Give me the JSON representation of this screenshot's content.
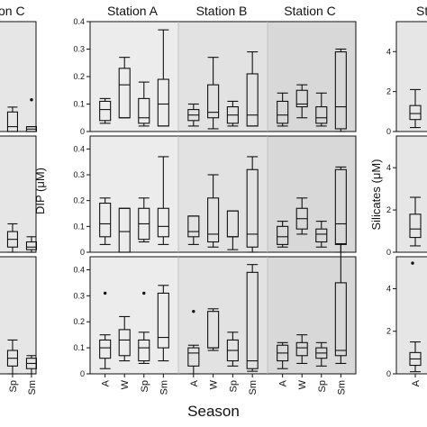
{
  "figure": {
    "xlabel": "Season",
    "ylabel_middle": "DIP (μM)",
    "ylabel_right": "Silicates (μM)"
  },
  "chart_data": [
    {
      "type": "box",
      "panel": "left column (clipped), rows 1–3",
      "title": "on C",
      "x_tick_labels": [
        "Sp",
        "Sm"
      ],
      "rows": [
        {
          "boxes": [
            {
              "season": "Sp",
              "min": 0.0,
              "q1": 0.0,
              "median": 0.02,
              "q3": 0.08,
              "max": 0.1
            },
            {
              "season": "Sm",
              "min": 0.0,
              "q1": 0.0,
              "median": 0.01,
              "q3": 0.02,
              "max": 0.02
            }
          ],
          "outliers": [
            {
              "season": "Sm",
              "value": 0.13
            }
          ]
        },
        {
          "boxes": [
            {
              "season": "Sp",
              "min": 0.0,
              "q1": 0.02,
              "median": 0.05,
              "q3": 0.08,
              "max": 0.11
            },
            {
              "season": "Sm",
              "min": 0.0,
              "q1": 0.01,
              "median": 0.02,
              "q3": 0.04,
              "max": 0.06
            }
          ],
          "outliers": []
        },
        {
          "boxes": [
            {
              "season": "Sp",
              "min": 0.0,
              "q1": 0.03,
              "median": 0.06,
              "q3": 0.09,
              "max": 0.13
            },
            {
              "season": "Sm",
              "min": 0.0,
              "q1": 0.02,
              "median": 0.04,
              "q3": 0.06,
              "max": 0.07
            }
          ],
          "outliers": []
        }
      ]
    },
    {
      "type": "box",
      "panel": "middle column",
      "stations": [
        "Station A",
        "Station B",
        "Station C"
      ],
      "seasons": [
        "A",
        "W",
        "Sp",
        "Sm"
      ],
      "ylabel": "DIP (μM)",
      "row_ylims": [
        [
          0,
          0.4
        ],
        [
          0,
          0.45
        ],
        [
          0,
          0.45
        ]
      ],
      "row_yticks": [
        [
          0,
          0.1,
          0.2,
          0.3,
          0.4
        ],
        [
          0,
          0.1,
          0.2,
          0.3,
          0.4
        ],
        [
          0,
          0.1,
          0.2,
          0.3,
          0.4
        ]
      ],
      "rows": [
        {
          "stations": [
            {
              "name": "Station A",
              "boxes": [
                {
                  "season": "A",
                  "min": 0.03,
                  "q1": 0.04,
                  "median": 0.08,
                  "q3": 0.11,
                  "max": 0.12
                },
                {
                  "season": "W",
                  "min": 0.05,
                  "q1": 0.05,
                  "median": 0.17,
                  "q3": 0.23,
                  "max": 0.27
                },
                {
                  "season": "Sp",
                  "min": 0.02,
                  "q1": 0.03,
                  "median": 0.05,
                  "q3": 0.12,
                  "max": 0.18
                },
                {
                  "season": "Sm",
                  "min": 0.02,
                  "q1": 0.02,
                  "median": 0.1,
                  "q3": 0.19,
                  "max": 0.37
                }
              ]
            },
            {
              "name": "Station B",
              "boxes": [
                {
                  "season": "A",
                  "min": 0.02,
                  "q1": 0.04,
                  "median": 0.06,
                  "q3": 0.08,
                  "max": 0.1
                },
                {
                  "season": "W",
                  "min": 0.01,
                  "q1": 0.05,
                  "median": 0.07,
                  "q3": 0.17,
                  "max": 0.27
                },
                {
                  "season": "Sp",
                  "min": 0.02,
                  "q1": 0.03,
                  "median": 0.06,
                  "q3": 0.09,
                  "max": 0.11
                },
                {
                  "season": "Sm",
                  "min": 0.02,
                  "q1": 0.02,
                  "median": 0.06,
                  "q3": 0.21,
                  "max": 0.29
                }
              ]
            },
            {
              "name": "Station C",
              "boxes": [
                {
                  "season": "A",
                  "min": 0.02,
                  "q1": 0.03,
                  "median": 0.06,
                  "q3": 0.11,
                  "max": 0.14
                },
                {
                  "season": "W",
                  "min": 0.05,
                  "q1": 0.09,
                  "median": 0.1,
                  "q3": 0.15,
                  "max": 0.17
                },
                {
                  "season": "Sp",
                  "min": 0.02,
                  "q1": 0.03,
                  "median": 0.05,
                  "q3": 0.09,
                  "max": 0.14
                },
                {
                  "season": "Sm",
                  "min": 0.0,
                  "q1": 0.01,
                  "median": 0.09,
                  "q3": 0.29,
                  "max": 0.3
                }
              ]
            }
          ]
        },
        {
          "stations": [
            {
              "name": "Station A",
              "boxes": [
                {
                  "season": "A",
                  "min": 0.03,
                  "q1": 0.06,
                  "median": 0.11,
                  "q3": 0.19,
                  "max": 0.21
                },
                {
                  "season": "W",
                  "min": 0.0,
                  "q1": 0.0,
                  "median": 0.08,
                  "q3": 0.17,
                  "max": 0.17
                },
                {
                  "season": "Sp",
                  "min": 0.04,
                  "q1": 0.05,
                  "median": 0.11,
                  "q3": 0.17,
                  "max": 0.21
                },
                {
                  "season": "Sm",
                  "min": 0.03,
                  "q1": 0.06,
                  "median": 0.1,
                  "q3": 0.17,
                  "max": 0.37
                }
              ]
            },
            {
              "name": "Station B",
              "boxes": [
                {
                  "season": "A",
                  "min": 0.03,
                  "q1": 0.06,
                  "median": 0.08,
                  "q3": 0.14,
                  "max": 0.14
                },
                {
                  "season": "W",
                  "min": 0.02,
                  "q1": 0.04,
                  "median": 0.07,
                  "q3": 0.21,
                  "max": 0.3
                },
                {
                  "season": "Sp",
                  "min": 0.01,
                  "q1": 0.06,
                  "median": 0.06,
                  "q3": 0.16,
                  "max": 0.16
                },
                {
                  "season": "Sm",
                  "min": 0.0,
                  "q1": 0.02,
                  "median": 0.07,
                  "q3": 0.32,
                  "max": 0.37
                }
              ]
            },
            {
              "name": "Station C",
              "boxes": [
                {
                  "season": "A",
                  "min": 0.02,
                  "q1": 0.03,
                  "median": 0.06,
                  "q3": 0.1,
                  "max": 0.12
                },
                {
                  "season": "W",
                  "min": 0.07,
                  "q1": 0.09,
                  "median": 0.13,
                  "q3": 0.17,
                  "max": 0.21
                },
                {
                  "season": "Sp",
                  "min": 0.02,
                  "q1": 0.04,
                  "median": 0.07,
                  "q3": 0.09,
                  "max": 0.12
                },
                {
                  "season": "Sm",
                  "min": 0.0,
                  "q1": 0.03,
                  "median": 0.11,
                  "q3": 0.32,
                  "max": 0.33
                }
              ]
            }
          ]
        },
        {
          "stations": [
            {
              "name": "Station A",
              "boxes": [
                {
                  "season": "A",
                  "min": 0.02,
                  "q1": 0.06,
                  "median": 0.1,
                  "q3": 0.13,
                  "max": 0.15
                },
                {
                  "season": "W",
                  "min": 0.05,
                  "q1": 0.07,
                  "median": 0.13,
                  "q3": 0.17,
                  "max": 0.22
                },
                {
                  "season": "Sp",
                  "min": 0.04,
                  "q1": 0.05,
                  "median": 0.1,
                  "q3": 0.13,
                  "max": 0.16
                },
                {
                  "season": "Sm",
                  "min": 0.05,
                  "q1": 0.1,
                  "median": 0.14,
                  "q3": 0.31,
                  "max": 0.34
                }
              ]
            },
            {
              "name": "Station B",
              "boxes": [
                {
                  "season": "A",
                  "min": 0.0,
                  "q1": 0.03,
                  "median": 0.08,
                  "q3": 0.1,
                  "max": 0.11
                },
                {
                  "season": "W",
                  "min": 0.09,
                  "q1": 0.1,
                  "median": 0.1,
                  "q3": 0.24,
                  "max": 0.25
                },
                {
                  "season": "Sp",
                  "min": 0.03,
                  "q1": 0.05,
                  "median": 0.09,
                  "q3": 0.13,
                  "max": 0.16
                },
                {
                  "season": "Sm",
                  "min": 0.01,
                  "q1": 0.02,
                  "median": 0.05,
                  "q3": 0.39,
                  "max": 0.42
                }
              ]
            },
            {
              "name": "Station C",
              "boxes": [
                {
                  "season": "A",
                  "min": 0.02,
                  "q1": 0.05,
                  "median": 0.08,
                  "q3": 0.11,
                  "max": 0.12
                },
                {
                  "season": "W",
                  "min": 0.04,
                  "q1": 0.07,
                  "median": 0.1,
                  "q3": 0.12,
                  "max": 0.15
                },
                {
                  "season": "Sp",
                  "min": 0.03,
                  "q1": 0.06,
                  "median": 0.08,
                  "q3": 0.1,
                  "max": 0.12
                },
                {
                  "season": "Sm",
                  "min": 0.04,
                  "q1": 0.07,
                  "median": 0.09,
                  "q3": 0.35,
                  "max": 0.5
                }
              ]
            }
          ]
        }
      ],
      "outliers": [
        {
          "row": 2,
          "station": "Station A",
          "season": "A",
          "value": 0.31
        },
        {
          "row": 2,
          "station": "Station A",
          "season": "Sp",
          "value": 0.31
        },
        {
          "row": 2,
          "station": "Station B",
          "season": "A",
          "value": 0.24
        }
      ]
    },
    {
      "type": "box",
      "panel": "right column (clipped)",
      "title": "St",
      "ylabel": "Silicates (μM)",
      "x_tick_labels": [
        "A"
      ],
      "row_ylims": [
        [
          0,
          5.5
        ],
        [
          0,
          5.5
        ],
        [
          0,
          5.5
        ]
      ],
      "row_yticks": [
        [
          0,
          2,
          4
        ],
        [
          0,
          2,
          4
        ],
        [
          0,
          2,
          4
        ]
      ],
      "rows": [
        {
          "boxes": [
            {
              "season": "A",
              "min": 0.2,
              "q1": 0.6,
              "median": 0.9,
              "q3": 1.3,
              "max": 2.1
            }
          ],
          "outliers": []
        },
        {
          "boxes": [
            {
              "season": "A",
              "min": 0.3,
              "q1": 0.7,
              "median": 1.1,
              "q3": 1.8,
              "max": 2.6
            }
          ],
          "outliers": []
        },
        {
          "boxes": [
            {
              "season": "A",
              "min": 0.1,
              "q1": 0.4,
              "median": 0.7,
              "q3": 1.0,
              "max": 1.5
            }
          ],
          "outliers": [
            {
              "season": "A",
              "value": 5.2
            }
          ]
        }
      ]
    }
  ]
}
